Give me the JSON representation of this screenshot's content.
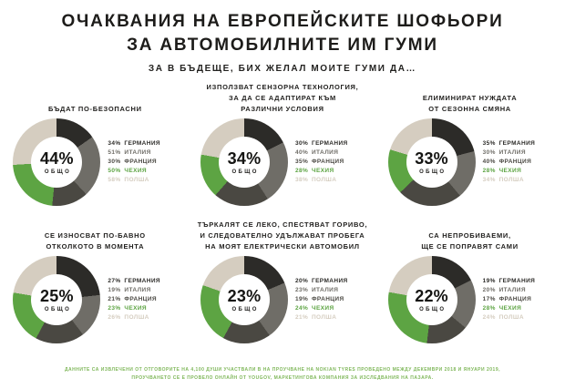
{
  "page": {
    "title": "ОЧАКВАНИЯ НА ЕВРОПЕЙСКИТЕ ШОФЬОРИ\nЗА АВТОМОБИЛНИТЕ ИМ ГУМИ",
    "subtitle": "ЗА В БЪДЕЩЕ, БИХ ЖЕЛАЛ МОИТЕ ГУМИ ДА…",
    "total_label": "ОБЩО",
    "footnote_line1": "ДАННИТЕ СА ИЗВЛЕЧЕНИ ОТ ОТГОВОРИТЕ НА 4,100 ДУШИ УЧАСТВАЛИ В НА ПРОУЧВАНЕ НА NOKIAN TYRES ПРОВЕДЕНО МЕЖДУ ДЕКЕМВРИ 2018 И ЯНУАРИ 2019,",
    "footnote_line2": "ПРОУЧВАНЕТО СЕ Е ПРОВЕЛО ОНЛАЙН ОТ YOUGOV, МАРКЕТИНГОВА КОМПАНИЯ ЗА ИЗСЛЕДВАНИЯ НА ПАЗАРА."
  },
  "colors": {
    "title": "#1d1c1a",
    "footnote": "#7fb75a",
    "slices": [
      "#2c2b28",
      "#6f6d67",
      "#4a4842",
      "#5da443",
      "#d5cdc0"
    ]
  },
  "chart_data": [
    {
      "type": "pie",
      "donut": true,
      "legend_position": "right",
      "title": "БЪДАТ ПО-БЕЗОПАСНИ",
      "total": "44%",
      "categories": [
        "ГЕРМАНИЯ",
        "ИТАЛИЯ",
        "ФРАНЦИЯ",
        "ЧЕХИЯ",
        "ПОЛША"
      ],
      "values": [
        34,
        51,
        30,
        50,
        58
      ]
    },
    {
      "type": "pie",
      "donut": true,
      "legend_position": "right",
      "title": "ИЗПОЛЗВАТ СЕНЗОРНА ТЕХНОЛОГИЯ,\nЗА ДА СЕ АДАПТИРАТ КЪМ\nРАЗЛИЧНИ УСЛОВИЯ",
      "total": "34%",
      "categories": [
        "ГЕРМАНИЯ",
        "ИТАЛИЯ",
        "ФРАНЦИЯ",
        "ЧЕХИЯ",
        "ПОЛША"
      ],
      "values": [
        30,
        40,
        35,
        28,
        38
      ]
    },
    {
      "type": "pie",
      "donut": true,
      "legend_position": "right",
      "title": "ЕЛИМИНИРАТ НУЖДАТА\nОТ СЕЗОННА СМЯНА",
      "total": "33%",
      "categories": [
        "ГЕРМАНИЯ",
        "ИТАЛИЯ",
        "ФРАНЦИЯ",
        "ЧЕХИЯ",
        "ПОЛША"
      ],
      "values": [
        35,
        30,
        40,
        28,
        34
      ]
    },
    {
      "type": "pie",
      "donut": true,
      "legend_position": "right",
      "title": "СЕ ИЗНОСВАТ ПО-БАВНО\nОТКОЛКОТО В МОМЕНТА",
      "total": "25%",
      "categories": [
        "ГЕРМАНИЯ",
        "ИТАЛИЯ",
        "ФРАНЦИЯ",
        "ЧЕХИЯ",
        "ПОЛША"
      ],
      "values": [
        27,
        19,
        21,
        23,
        26
      ]
    },
    {
      "type": "pie",
      "donut": true,
      "legend_position": "right",
      "title": "ТЪРКАЛЯТ СЕ ЛЕКО, СПЕСТЯВАТ ГОРИВО,\nИ СЛЕДОВАТЕЛНО УДЪЛЖАВАТ ПРОБЕГА\nНА МОЯТ ЕЛЕКТРИЧЕСКИ АВТОМОБИЛ",
      "total": "23%",
      "categories": [
        "ГЕРМАНИЯ",
        "ИТАЛИЯ",
        "ФРАНЦИЯ",
        "ЧЕХИЯ",
        "ПОЛША"
      ],
      "values": [
        20,
        23,
        19,
        24,
        21
      ]
    },
    {
      "type": "pie",
      "donut": true,
      "legend_position": "right",
      "title": "СА НЕПРОБИВАЕМИ,\nЩЕ СЕ ПОПРАВЯТ САМИ",
      "total": "22%",
      "categories": [
        "ГЕРМАНИЯ",
        "ИТАЛИЯ",
        "ФРАНЦИЯ",
        "ЧЕХИЯ",
        "ПОЛША"
      ],
      "values": [
        19,
        20,
        17,
        28,
        24
      ]
    }
  ]
}
